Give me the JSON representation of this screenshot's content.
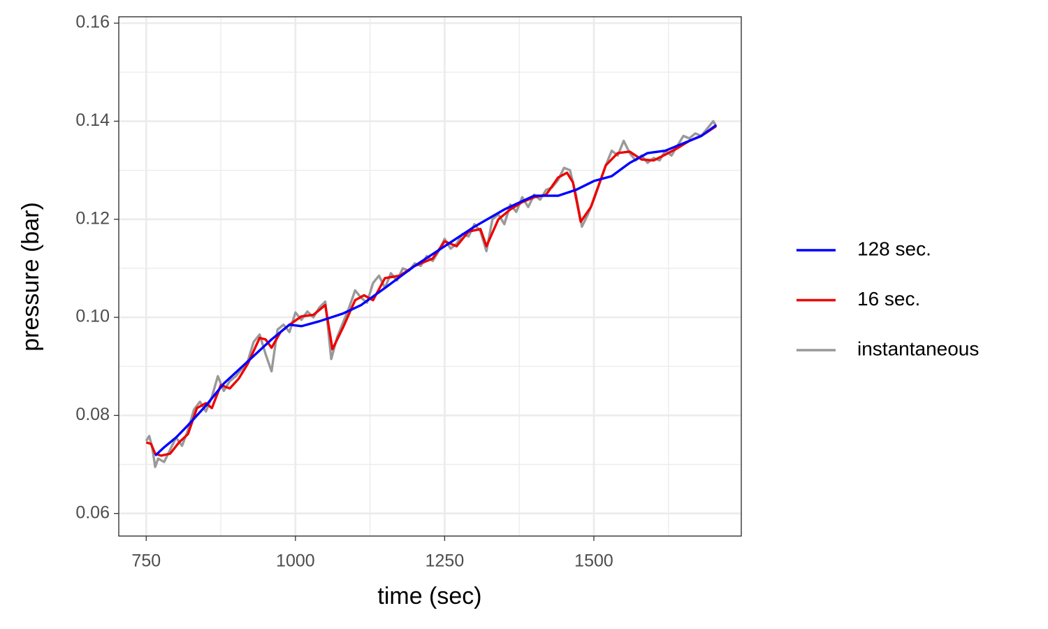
{
  "chart_data": {
    "type": "line",
    "xlabel": "time (sec)",
    "ylabel": "pressure (bar)",
    "xlim": [
      704,
      1747
    ],
    "ylim": [
      0.0554,
      0.1613
    ],
    "xticks": [
      750,
      1000,
      1250,
      1500
    ],
    "yticks": [
      0.06,
      0.08,
      {
        "value": 0.1,
        "label": "0.10"
      },
      0.12,
      0.14,
      0.16
    ],
    "grid": true,
    "legend": "right",
    "series": [
      {
        "name": "128 sec.",
        "color": "#0000ff",
        "x": [
          765,
          780,
          800,
          820,
          850,
          880,
          920,
          960,
          990,
          1010,
          1040,
          1080,
          1110,
          1150,
          1200,
          1250,
          1300,
          1350,
          1400,
          1440,
          1470,
          1500,
          1530,
          1560,
          1590,
          1620,
          1650,
          1680,
          1705
        ],
        "values": [
          0.0718,
          0.0735,
          0.0755,
          0.078,
          0.082,
          0.0865,
          0.091,
          0.0955,
          0.0985,
          0.0982,
          0.0992,
          0.1008,
          0.1025,
          0.106,
          0.1105,
          0.1145,
          0.1185,
          0.122,
          0.1248,
          0.1248,
          0.126,
          0.1278,
          0.1288,
          0.1315,
          0.1335,
          0.134,
          0.1355,
          0.137,
          0.1392
        ]
      },
      {
        "name": "16 sec.",
        "color": "#ee0000",
        "x": [
          750,
          758,
          765,
          775,
          790,
          805,
          820,
          835,
          850,
          860,
          875,
          890,
          905,
          920,
          940,
          950,
          960,
          975,
          990,
          1010,
          1030,
          1050,
          1062,
          1080,
          1100,
          1115,
          1130,
          1150,
          1175,
          1200,
          1230,
          1250,
          1270,
          1290,
          1310,
          1320,
          1340,
          1360,
          1380,
          1400,
          1420,
          1440,
          1455,
          1465,
          1478,
          1495,
          1520,
          1540,
          1560,
          1580,
          1600,
          1620,
          1640,
          1660,
          1680,
          1705
        ],
        "values": [
          0.0745,
          0.0742,
          0.0722,
          0.0718,
          0.0722,
          0.0745,
          0.0762,
          0.0815,
          0.0825,
          0.0815,
          0.0862,
          0.0855,
          0.0875,
          0.0905,
          0.0958,
          0.0955,
          0.0938,
          0.097,
          0.0985,
          0.1002,
          0.1005,
          0.1025,
          0.0935,
          0.098,
          0.1035,
          0.1045,
          0.1035,
          0.108,
          0.1085,
          0.1105,
          0.112,
          0.1155,
          0.1145,
          0.1175,
          0.118,
          0.1145,
          0.12,
          0.122,
          0.1235,
          0.1245,
          0.125,
          0.1285,
          0.1295,
          0.1275,
          0.1195,
          0.1225,
          0.131,
          0.1335,
          0.1338,
          0.1322,
          0.132,
          0.1332,
          0.1345,
          0.136,
          0.137,
          0.139
        ]
      },
      {
        "name": "instantaneous",
        "color": "#999999",
        "x": [
          750,
          755,
          760,
          765,
          770,
          780,
          790,
          800,
          810,
          820,
          830,
          840,
          850,
          860,
          870,
          880,
          890,
          900,
          910,
          920,
          930,
          940,
          950,
          960,
          970,
          980,
          990,
          1000,
          1010,
          1020,
          1030,
          1040,
          1050,
          1060,
          1070,
          1080,
          1090,
          1100,
          1110,
          1120,
          1130,
          1140,
          1150,
          1160,
          1170,
          1180,
          1190,
          1200,
          1210,
          1220,
          1230,
          1240,
          1250,
          1260,
          1270,
          1280,
          1290,
          1300,
          1310,
          1320,
          1330,
          1340,
          1350,
          1360,
          1370,
          1380,
          1390,
          1400,
          1410,
          1420,
          1430,
          1440,
          1450,
          1460,
          1470,
          1480,
          1490,
          1500,
          1510,
          1520,
          1530,
          1540,
          1550,
          1560,
          1570,
          1580,
          1590,
          1600,
          1610,
          1620,
          1630,
          1640,
          1650,
          1660,
          1670,
          1680,
          1690,
          1700,
          1705
        ],
        "values": [
          0.0748,
          0.0758,
          0.0735,
          0.0695,
          0.0712,
          0.0705,
          0.073,
          0.0755,
          0.0738,
          0.077,
          0.0812,
          0.0828,
          0.0808,
          0.0838,
          0.088,
          0.085,
          0.087,
          0.088,
          0.0895,
          0.091,
          0.095,
          0.0965,
          0.0925,
          0.089,
          0.0975,
          0.0985,
          0.097,
          0.101,
          0.0995,
          0.1012,
          0.1,
          0.102,
          0.1032,
          0.0915,
          0.096,
          0.099,
          0.102,
          0.1055,
          0.104,
          0.103,
          0.107,
          0.1085,
          0.106,
          0.109,
          0.1075,
          0.11,
          0.1095,
          0.111,
          0.1105,
          0.1125,
          0.1115,
          0.1135,
          0.116,
          0.114,
          0.115,
          0.117,
          0.1165,
          0.119,
          0.1175,
          0.1135,
          0.12,
          0.121,
          0.119,
          0.123,
          0.1215,
          0.1245,
          0.1225,
          0.125,
          0.124,
          0.126,
          0.1265,
          0.128,
          0.1305,
          0.13,
          0.125,
          0.1185,
          0.121,
          0.124,
          0.1275,
          0.131,
          0.134,
          0.133,
          0.136,
          0.1335,
          0.132,
          0.133,
          0.1315,
          0.1325,
          0.132,
          0.134,
          0.133,
          0.135,
          0.137,
          0.1365,
          0.1375,
          0.137,
          0.1385,
          0.14,
          0.139
        ]
      }
    ]
  }
}
